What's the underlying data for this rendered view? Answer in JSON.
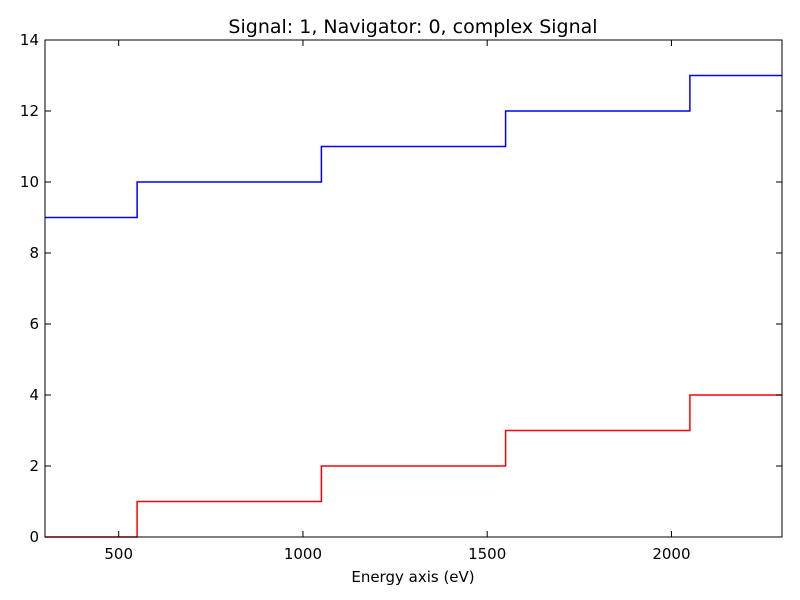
{
  "chart_data": {
    "type": "line",
    "title": "Signal: 1, Navigator: 0, complex Signal",
    "xlabel": "Energy axis (eV)",
    "ylabel": "",
    "xlim": [
      300,
      2300
    ],
    "ylim": [
      0,
      14
    ],
    "grid": false,
    "legend": "none",
    "step": "post",
    "x": [
      300,
      550,
      1050,
      1550,
      2050
    ],
    "x_ticks": [
      {
        "value": 500,
        "label": "500"
      },
      {
        "value": 1000,
        "label": "1000"
      },
      {
        "value": 1500,
        "label": "1500"
      },
      {
        "value": 2000,
        "label": "2000"
      }
    ],
    "y_ticks": [
      {
        "value": 0,
        "label": "0"
      },
      {
        "value": 2,
        "label": "2"
      },
      {
        "value": 4,
        "label": "4"
      },
      {
        "value": 6,
        "label": "6"
      },
      {
        "value": 8,
        "label": "8"
      },
      {
        "value": 10,
        "label": "10"
      },
      {
        "value": 12,
        "label": "12"
      },
      {
        "value": 14,
        "label": "14"
      }
    ],
    "series": [
      {
        "values": [
          9,
          10,
          11,
          12,
          13
        ],
        "color": "#0000ff"
      },
      {
        "values": [
          0,
          1,
          2,
          3,
          4
        ],
        "color": "#ff0000"
      }
    ]
  }
}
